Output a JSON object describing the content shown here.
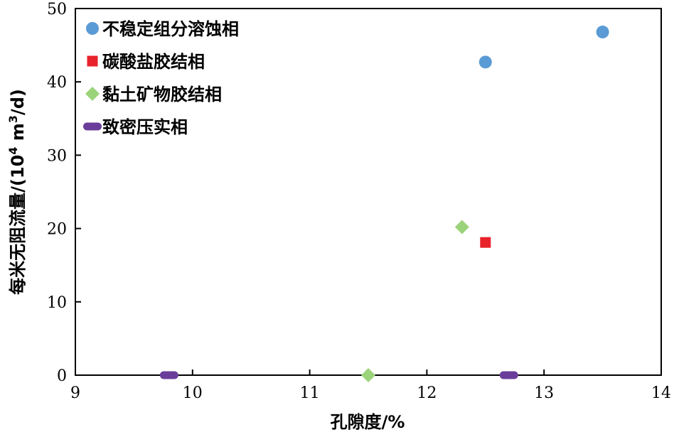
{
  "chart_data": {
    "type": "scatter",
    "xlabel": "孔隙度/%",
    "ylabel_main": "每米无阻流量/(10",
    "ylabel_sup": "4",
    "ylabel_mid": " m",
    "ylabel_sup2": "3",
    "ylabel_end": "/d)",
    "xlim": [
      9,
      14
    ],
    "ylim": [
      0,
      50
    ],
    "xticks": [
      9,
      10,
      11,
      12,
      13,
      14
    ],
    "yticks": [
      0,
      10,
      20,
      30,
      40,
      50
    ],
    "grid": false,
    "legend_position": "top-left",
    "series": [
      {
        "name": "不稳定组分溶蚀相",
        "marker": "circle",
        "color": "#5B9BD5",
        "points": [
          [
            12.5,
            42.7
          ],
          [
            13.5,
            46.8
          ]
        ]
      },
      {
        "name": "碳酸盐胶结相",
        "marker": "square",
        "color": "#E8232B",
        "points": [
          [
            12.5,
            18.1
          ]
        ]
      },
      {
        "name": "黏土矿物胶结相",
        "marker": "diamond",
        "color": "#9BD37A",
        "points": [
          [
            12.3,
            20.2
          ],
          [
            11.5,
            0
          ]
        ]
      },
      {
        "name": "致密压实相",
        "marker": "dash",
        "color": "#6A3D9A",
        "points": [
          [
            9.8,
            0
          ],
          [
            12.7,
            0
          ]
        ]
      }
    ]
  }
}
